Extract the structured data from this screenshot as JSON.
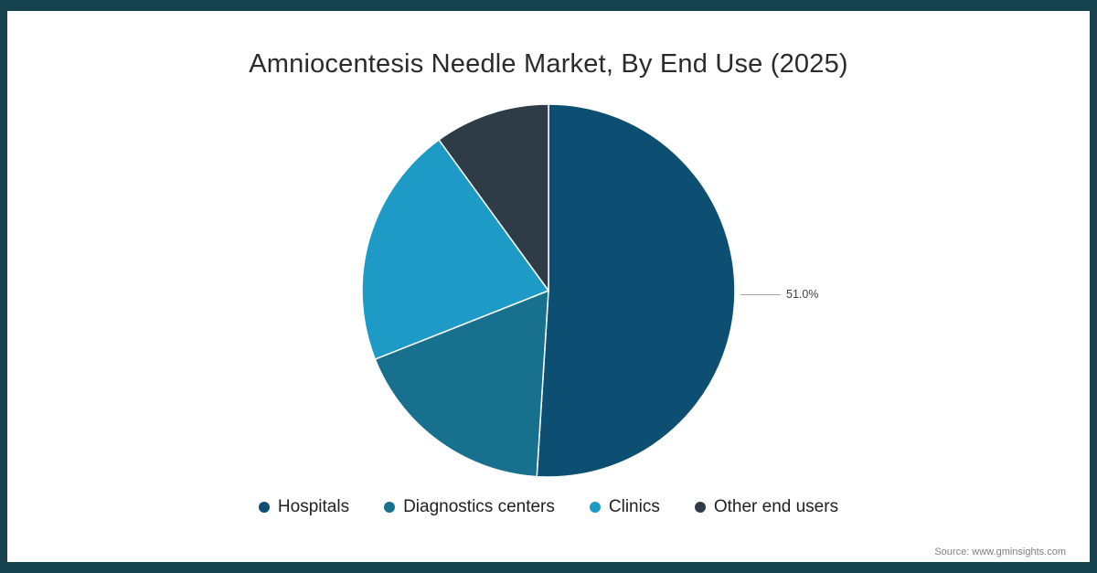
{
  "title": "Amniocentesis Needle Market, By End Use (2025)",
  "source": "Source: www.gminsights.com",
  "frame": {
    "border_color": "#16424e",
    "background_color": "#ffffff"
  },
  "chart_data": {
    "type": "pie",
    "title": "Amniocentesis Needle Market, By End Use (2025)",
    "categories": [
      "Hospitals",
      "Diagnostics centers",
      "Clinics",
      "Other end users"
    ],
    "values": [
      51.0,
      18.0,
      21.0,
      10.0
    ],
    "colors": [
      "#0d4e73",
      "#17708d",
      "#1e9ac6",
      "#2d3c46"
    ],
    "start_angle_deg": -90,
    "direction": "clockwise",
    "slice_border_color": "#ffffff",
    "legend_position": "bottom",
    "data_label": {
      "series": "Hospitals",
      "text": "51.0%"
    }
  }
}
